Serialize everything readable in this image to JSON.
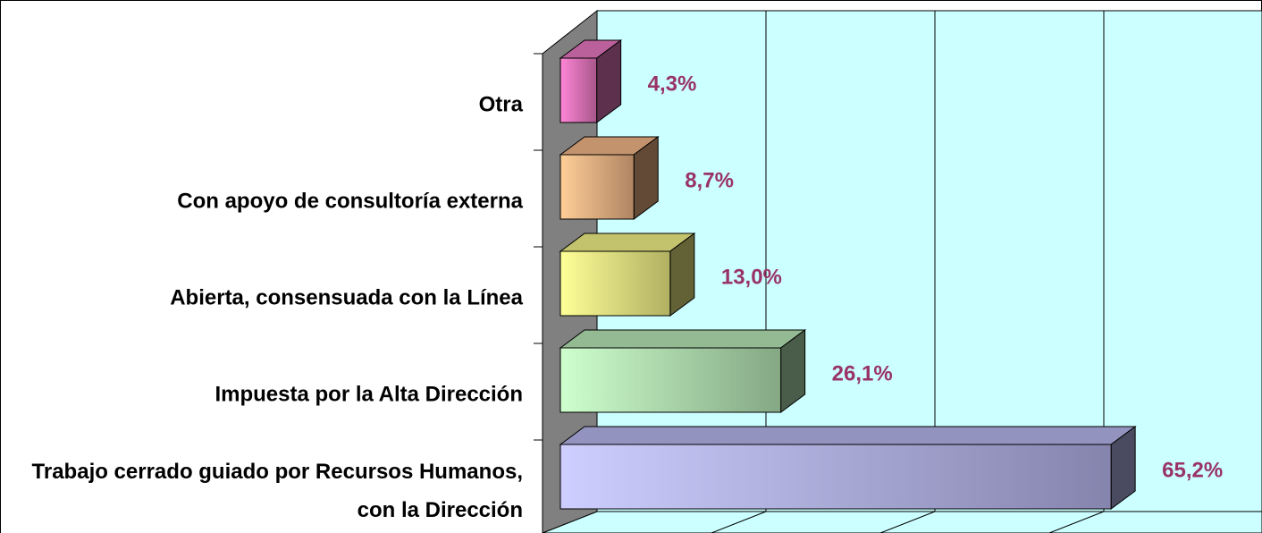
{
  "chart_data": {
    "type": "bar3d-horizontal",
    "categories": [
      "Otra",
      "Con apoyo de consultoría externa",
      "Abierta, consensuada con la Línea",
      "Impuesta por la Alta Dirección",
      "Trabajo cerrado guiado por Recursos Humanos, con la Dirección"
    ],
    "values": [
      4.3,
      8.7,
      13.0,
      26.1,
      65.2
    ],
    "value_labels": [
      "4,3%",
      "8,7%",
      "13,0%",
      "26,1%",
      "65,2%"
    ],
    "colors": [
      "#e878c0",
      "#f4b888",
      "#f4f488",
      "#b8e8b8",
      "#b8b8f0"
    ],
    "label_color": "#993366",
    "xlim": [
      0,
      80
    ],
    "xticks": [
      0,
      20,
      40,
      60,
      80
    ],
    "grid": true
  }
}
